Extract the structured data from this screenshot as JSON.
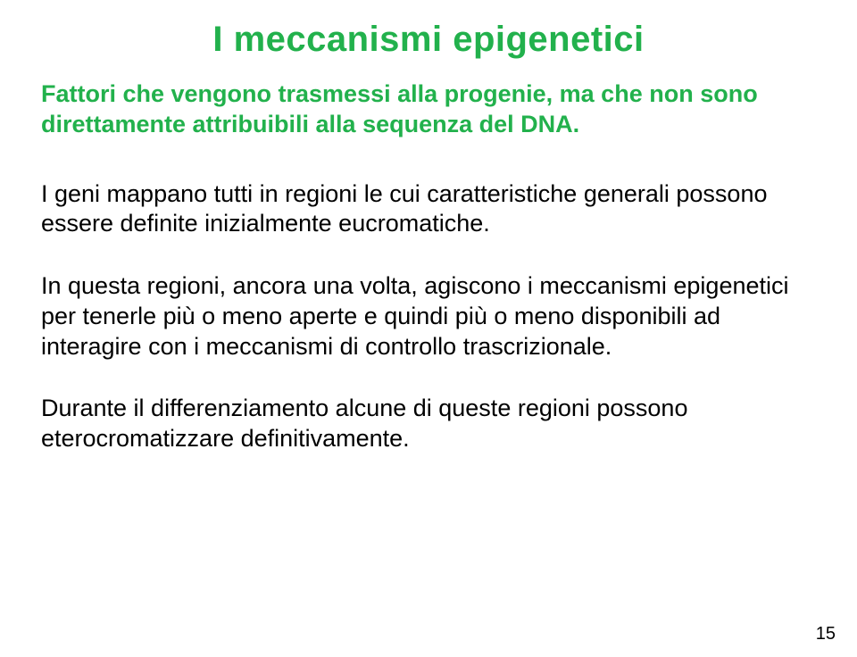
{
  "colors": {
    "title_color": "#22b14c",
    "subtitle_color": "#22b14c",
    "body_color": "#000000",
    "background": "#ffffff"
  },
  "typography": {
    "title_fontsize": 40,
    "subtitle_fontsize": 27,
    "body_fontsize": 27,
    "pagenum_fontsize": 20,
    "font_family": "Arial",
    "title_weight": 700,
    "subtitle_weight": 700,
    "body_weight": 400
  },
  "title": "I meccanismi epigenetici",
  "subtitle": "Fattori che vengono trasmessi alla progenie, ma che non sono direttamente attribuibili alla sequenza del DNA.",
  "paragraphs": {
    "p1": "I geni mappano tutti in regioni le cui caratteristiche generali possono essere definite inizialmente eucromatiche.",
    "p2": "In questa regioni, ancora una volta, agiscono i meccanismi epigenetici per tenerle più o meno aperte e quindi più o meno disponibili ad interagire con i meccanismi di controllo trascrizionale.",
    "p3": "Durante il differenziamento alcune di queste regioni possono eterocromatizzare definitivamente."
  },
  "page_number": "15"
}
